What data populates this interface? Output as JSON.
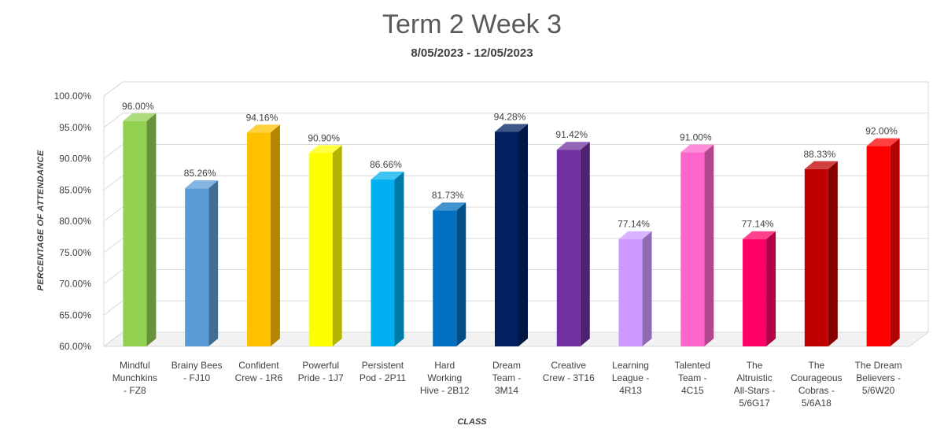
{
  "chart_data": {
    "type": "bar",
    "title": "Term 2 Week 3",
    "subtitle": "8/05/2023 - 12/05/2023",
    "xlabel": "CLASS",
    "ylabel": "PERCENTAGE OF ATTENDANCE",
    "ylim": [
      60,
      100
    ],
    "ytick_step": 5,
    "y_tick_labels": [
      "60.00%",
      "65.00%",
      "70.00%",
      "75.00%",
      "80.00%",
      "85.00%",
      "90.00%",
      "95.00%",
      "100.00%"
    ],
    "grid": true,
    "legend": "none",
    "categories": [
      "Mindful Munchkins - FZ8",
      "Brainy Bees - FJ10",
      "Confident Crew - 1R6",
      "Powerful Pride - 1J7",
      "Persistent Pod - 2P11",
      "Hard Working Hive - 2B12",
      "Dream Team - 3M14",
      "Creative Crew - 3T16",
      "Learning League - 4R13",
      "Talented Team - 4C15",
      "The Altruistic All-Stars - 5/6G17",
      "The Courageous Cobras - 5/6A18",
      "The Dream Believers - 5/6W20"
    ],
    "category_label_lines": [
      [
        "Mindful",
        "Munchkins",
        "- FZ8"
      ],
      [
        "Brainy Bees",
        "- FJ10"
      ],
      [
        "Confident",
        "Crew - 1R6"
      ],
      [
        "Powerful",
        "Pride - 1J7"
      ],
      [
        "Persistent",
        "Pod - 2P11"
      ],
      [
        "Hard",
        "Working",
        "Hive - 2B12"
      ],
      [
        "Dream",
        "Team -",
        "3M14"
      ],
      [
        "Creative",
        "Crew - 3T16"
      ],
      [
        "Learning",
        "League -",
        "4R13"
      ],
      [
        "Talented",
        "Team -",
        "4C15"
      ],
      [
        "The",
        "Altruistic",
        "All-Stars -",
        "5/6G17"
      ],
      [
        "The",
        "Courageous",
        "Cobras -",
        "5/6A18"
      ],
      [
        "The Dream",
        "Believers -",
        "5/6W20"
      ]
    ],
    "values": [
      96.0,
      85.26,
      94.16,
      90.9,
      86.66,
      81.73,
      94.28,
      91.42,
      77.14,
      91.0,
      77.14,
      88.33,
      92.0
    ],
    "data_labels": [
      "96.00%",
      "85.26%",
      "94.16%",
      "90.90%",
      "86.66%",
      "81.73%",
      "94.28%",
      "91.42%",
      "77.14%",
      "91.00%",
      "77.14%",
      "88.33%",
      "92.00%"
    ],
    "colors": [
      "#92D050",
      "#5B9BD5",
      "#FFC000",
      "#FFFF00",
      "#00B0F0",
      "#0070C0",
      "#002060",
      "#7030A0",
      "#CC99FF",
      "#FF66CC",
      "#FF0066",
      "#C00000",
      "#FF0000"
    ]
  }
}
